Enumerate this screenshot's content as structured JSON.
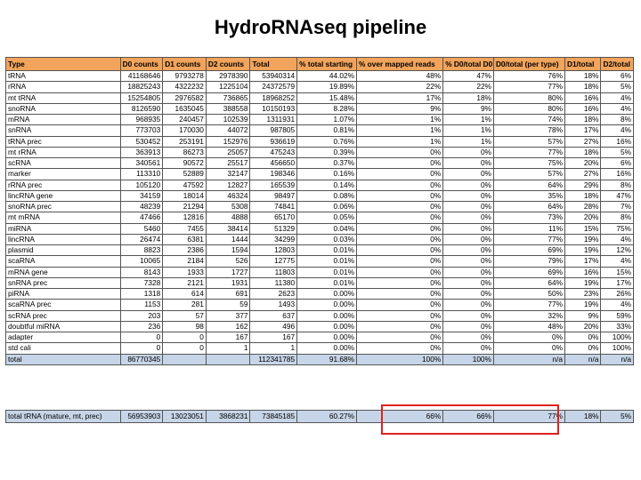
{
  "title": "HydroRNAseq pipeline",
  "columns": [
    "Type",
    "D0 counts",
    "D1 counts",
    "D2 counts",
    "Total",
    "% total starting",
    "% over mapped reads",
    "% D0/total D0",
    "D0/total (per type)",
    "D1/total",
    "D2/total"
  ],
  "rows": [
    [
      "tRNA",
      "41168646",
      "9793278",
      "2978390",
      "53940314",
      "44.02%",
      "48%",
      "47%",
      "76%",
      "18%",
      "6%"
    ],
    [
      "rRNA",
      "18825243",
      "4322232",
      "1225104",
      "24372579",
      "19.89%",
      "22%",
      "22%",
      "77%",
      "18%",
      "5%"
    ],
    [
      "mt tRNA",
      "15254805",
      "2976582",
      "736865",
      "18968252",
      "15.48%",
      "17%",
      "18%",
      "80%",
      "16%",
      "4%"
    ],
    [
      "snoRNA",
      "8126590",
      "1635045",
      "388558",
      "10150193",
      "8.28%",
      "9%",
      "9%",
      "80%",
      "16%",
      "4%"
    ],
    [
      "mRNA",
      "968935",
      "240457",
      "102539",
      "1311931",
      "1.07%",
      "1%",
      "1%",
      "74%",
      "18%",
      "8%"
    ],
    [
      "snRNA",
      "773703",
      "170030",
      "44072",
      "987805",
      "0.81%",
      "1%",
      "1%",
      "78%",
      "17%",
      "4%"
    ],
    [
      "tRNA prec",
      "530452",
      "253191",
      "152976",
      "936619",
      "0.76%",
      "1%",
      "1%",
      "57%",
      "27%",
      "16%"
    ],
    [
      "mt rRNA",
      "363913",
      "86273",
      "25057",
      "475243",
      "0.39%",
      "0%",
      "0%",
      "77%",
      "18%",
      "5%"
    ],
    [
      "scRNA",
      "340561",
      "90572",
      "25517",
      "456650",
      "0.37%",
      "0%",
      "0%",
      "75%",
      "20%",
      "6%"
    ],
    [
      "marker",
      "113310",
      "52889",
      "32147",
      "198346",
      "0.16%",
      "0%",
      "0%",
      "57%",
      "27%",
      "16%"
    ],
    [
      "rRNA prec",
      "105120",
      "47592",
      "12827",
      "165539",
      "0.14%",
      "0%",
      "0%",
      "64%",
      "29%",
      "8%"
    ],
    [
      "lincRNA gene",
      "34159",
      "18014",
      "46324",
      "98497",
      "0.08%",
      "0%",
      "0%",
      "35%",
      "18%",
      "47%"
    ],
    [
      "snoRNA prec",
      "48239",
      "21294",
      "5308",
      "74841",
      "0.06%",
      "0%",
      "0%",
      "64%",
      "28%",
      "7%"
    ],
    [
      "mt mRNA",
      "47466",
      "12816",
      "4888",
      "65170",
      "0.05%",
      "0%",
      "0%",
      "73%",
      "20%",
      "8%"
    ],
    [
      "miRNA",
      "5460",
      "7455",
      "38414",
      "51329",
      "0.04%",
      "0%",
      "0%",
      "11%",
      "15%",
      "75%"
    ],
    [
      "lincRNA",
      "26474",
      "6381",
      "1444",
      "34299",
      "0.03%",
      "0%",
      "0%",
      "77%",
      "19%",
      "4%"
    ],
    [
      "plasmid",
      "8823",
      "2386",
      "1594",
      "12803",
      "0.01%",
      "0%",
      "0%",
      "69%",
      "19%",
      "12%"
    ],
    [
      "scaRNA",
      "10065",
      "2184",
      "526",
      "12775",
      "0.01%",
      "0%",
      "0%",
      "79%",
      "17%",
      "4%"
    ],
    [
      "mRNA gene",
      "8143",
      "1933",
      "1727",
      "11803",
      "0.01%",
      "0%",
      "0%",
      "69%",
      "16%",
      "15%"
    ],
    [
      "snRNA prec",
      "7328",
      "2121",
      "1931",
      "11380",
      "0.01%",
      "0%",
      "0%",
      "64%",
      "19%",
      "17%"
    ],
    [
      "piRNA",
      "1318",
      "614",
      "691",
      "2623",
      "0.00%",
      "0%",
      "0%",
      "50%",
      "23%",
      "26%"
    ],
    [
      "scaRNA prec",
      "1153",
      "281",
      "59",
      "1493",
      "0.00%",
      "0%",
      "0%",
      "77%",
      "19%",
      "4%"
    ],
    [
      "scRNA prec",
      "203",
      "57",
      "377",
      "637",
      "0.00%",
      "0%",
      "0%",
      "32%",
      "9%",
      "59%"
    ],
    [
      "doubtful miRNA",
      "236",
      "98",
      "162",
      "496",
      "0.00%",
      "0%",
      "0%",
      "48%",
      "20%",
      "33%"
    ],
    [
      "adapter",
      "0",
      "0",
      "167",
      "167",
      "0.00%",
      "0%",
      "0%",
      "0%",
      "0%",
      "100%"
    ],
    [
      "std cali",
      "0",
      "0",
      "1",
      "1",
      "0.00%",
      "0%",
      "0%",
      "0%",
      "0%",
      "100%"
    ]
  ],
  "total": [
    "total",
    "86770345",
    "",
    "",
    "112341785",
    "91.68%",
    "100%",
    "100%",
    "n/a",
    "n/a",
    "n/a"
  ],
  "summary": [
    "total tRNA (mature, mt, prec)",
    "56953903",
    "13023051",
    "3868231",
    "73845185",
    "60.27%",
    "66%",
    "66%",
    "77%",
    "18%",
    "5%"
  ],
  "colors": {
    "header": "#f2a45c",
    "total_row": "#c7d5e8",
    "highlight": "#e02020"
  }
}
